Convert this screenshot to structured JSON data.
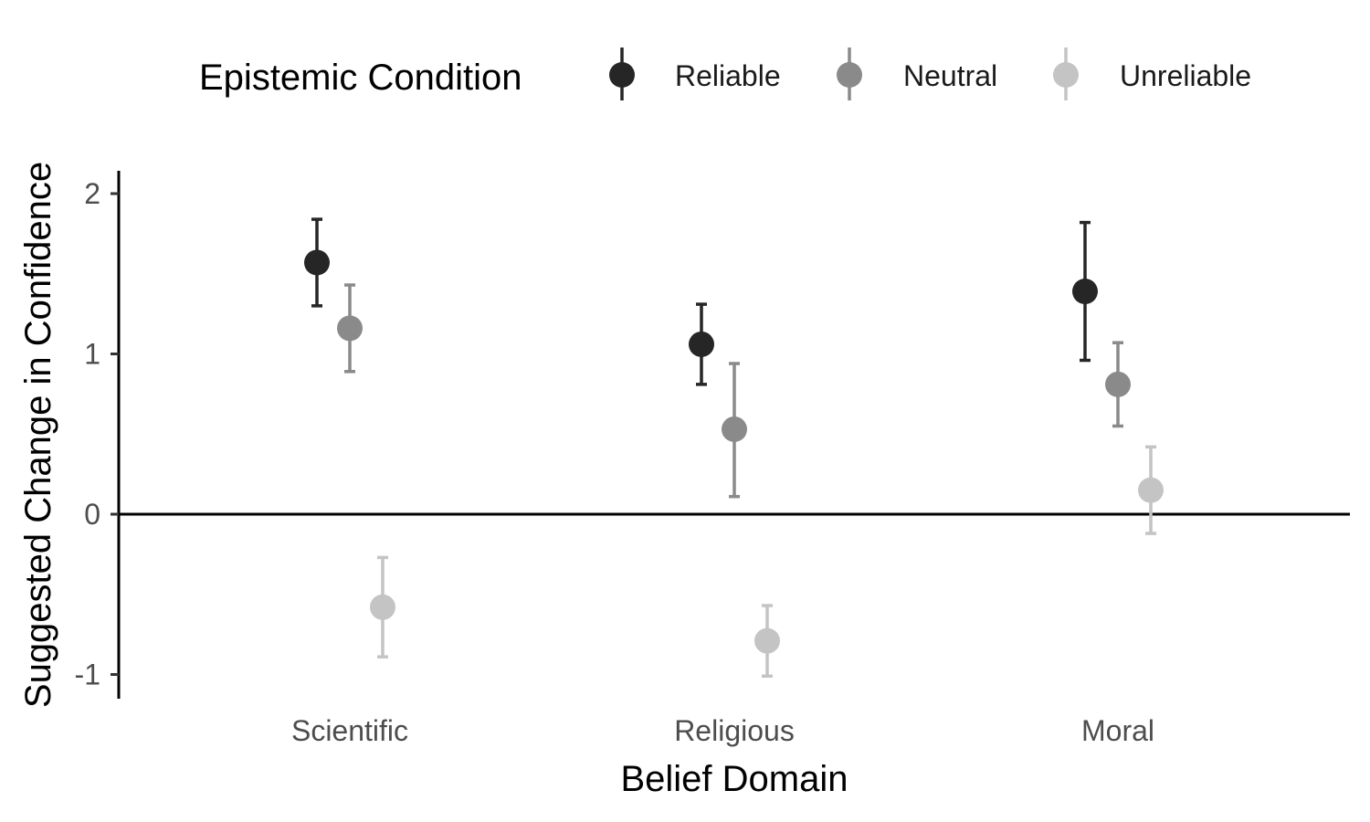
{
  "chart_data": {
    "type": "scatter",
    "title": "",
    "xlabel": "Belief Domain",
    "ylabel": "Suggested Change in Confidence",
    "categories": [
      "Scientific",
      "Religious",
      "Moral"
    ],
    "yticks": [
      "-1",
      "0",
      "1",
      "2"
    ],
    "ylim": [
      -1.15,
      2.15
    ],
    "reference_line_y": 0,
    "legend": {
      "title": "Epistemic Condition",
      "position": "top"
    },
    "series": [
      {
        "name": "Reliable",
        "color": "#262626",
        "values": [
          1.57,
          1.06,
          1.39
        ],
        "lower": [
          1.3,
          0.81,
          0.96
        ],
        "upper": [
          1.84,
          1.31,
          1.82
        ]
      },
      {
        "name": "Neutral",
        "color": "#8a8a8a",
        "values": [
          1.16,
          0.53,
          0.81
        ],
        "lower": [
          0.89,
          0.11,
          0.55
        ],
        "upper": [
          1.43,
          0.94,
          1.07
        ]
      },
      {
        "name": "Unreliable",
        "color": "#c4c4c4",
        "values": [
          -0.58,
          -0.79,
          0.15
        ],
        "lower": [
          -0.89,
          -1.01,
          -0.12
        ],
        "upper": [
          -0.27,
          -0.57,
          0.42
        ]
      }
    ]
  }
}
